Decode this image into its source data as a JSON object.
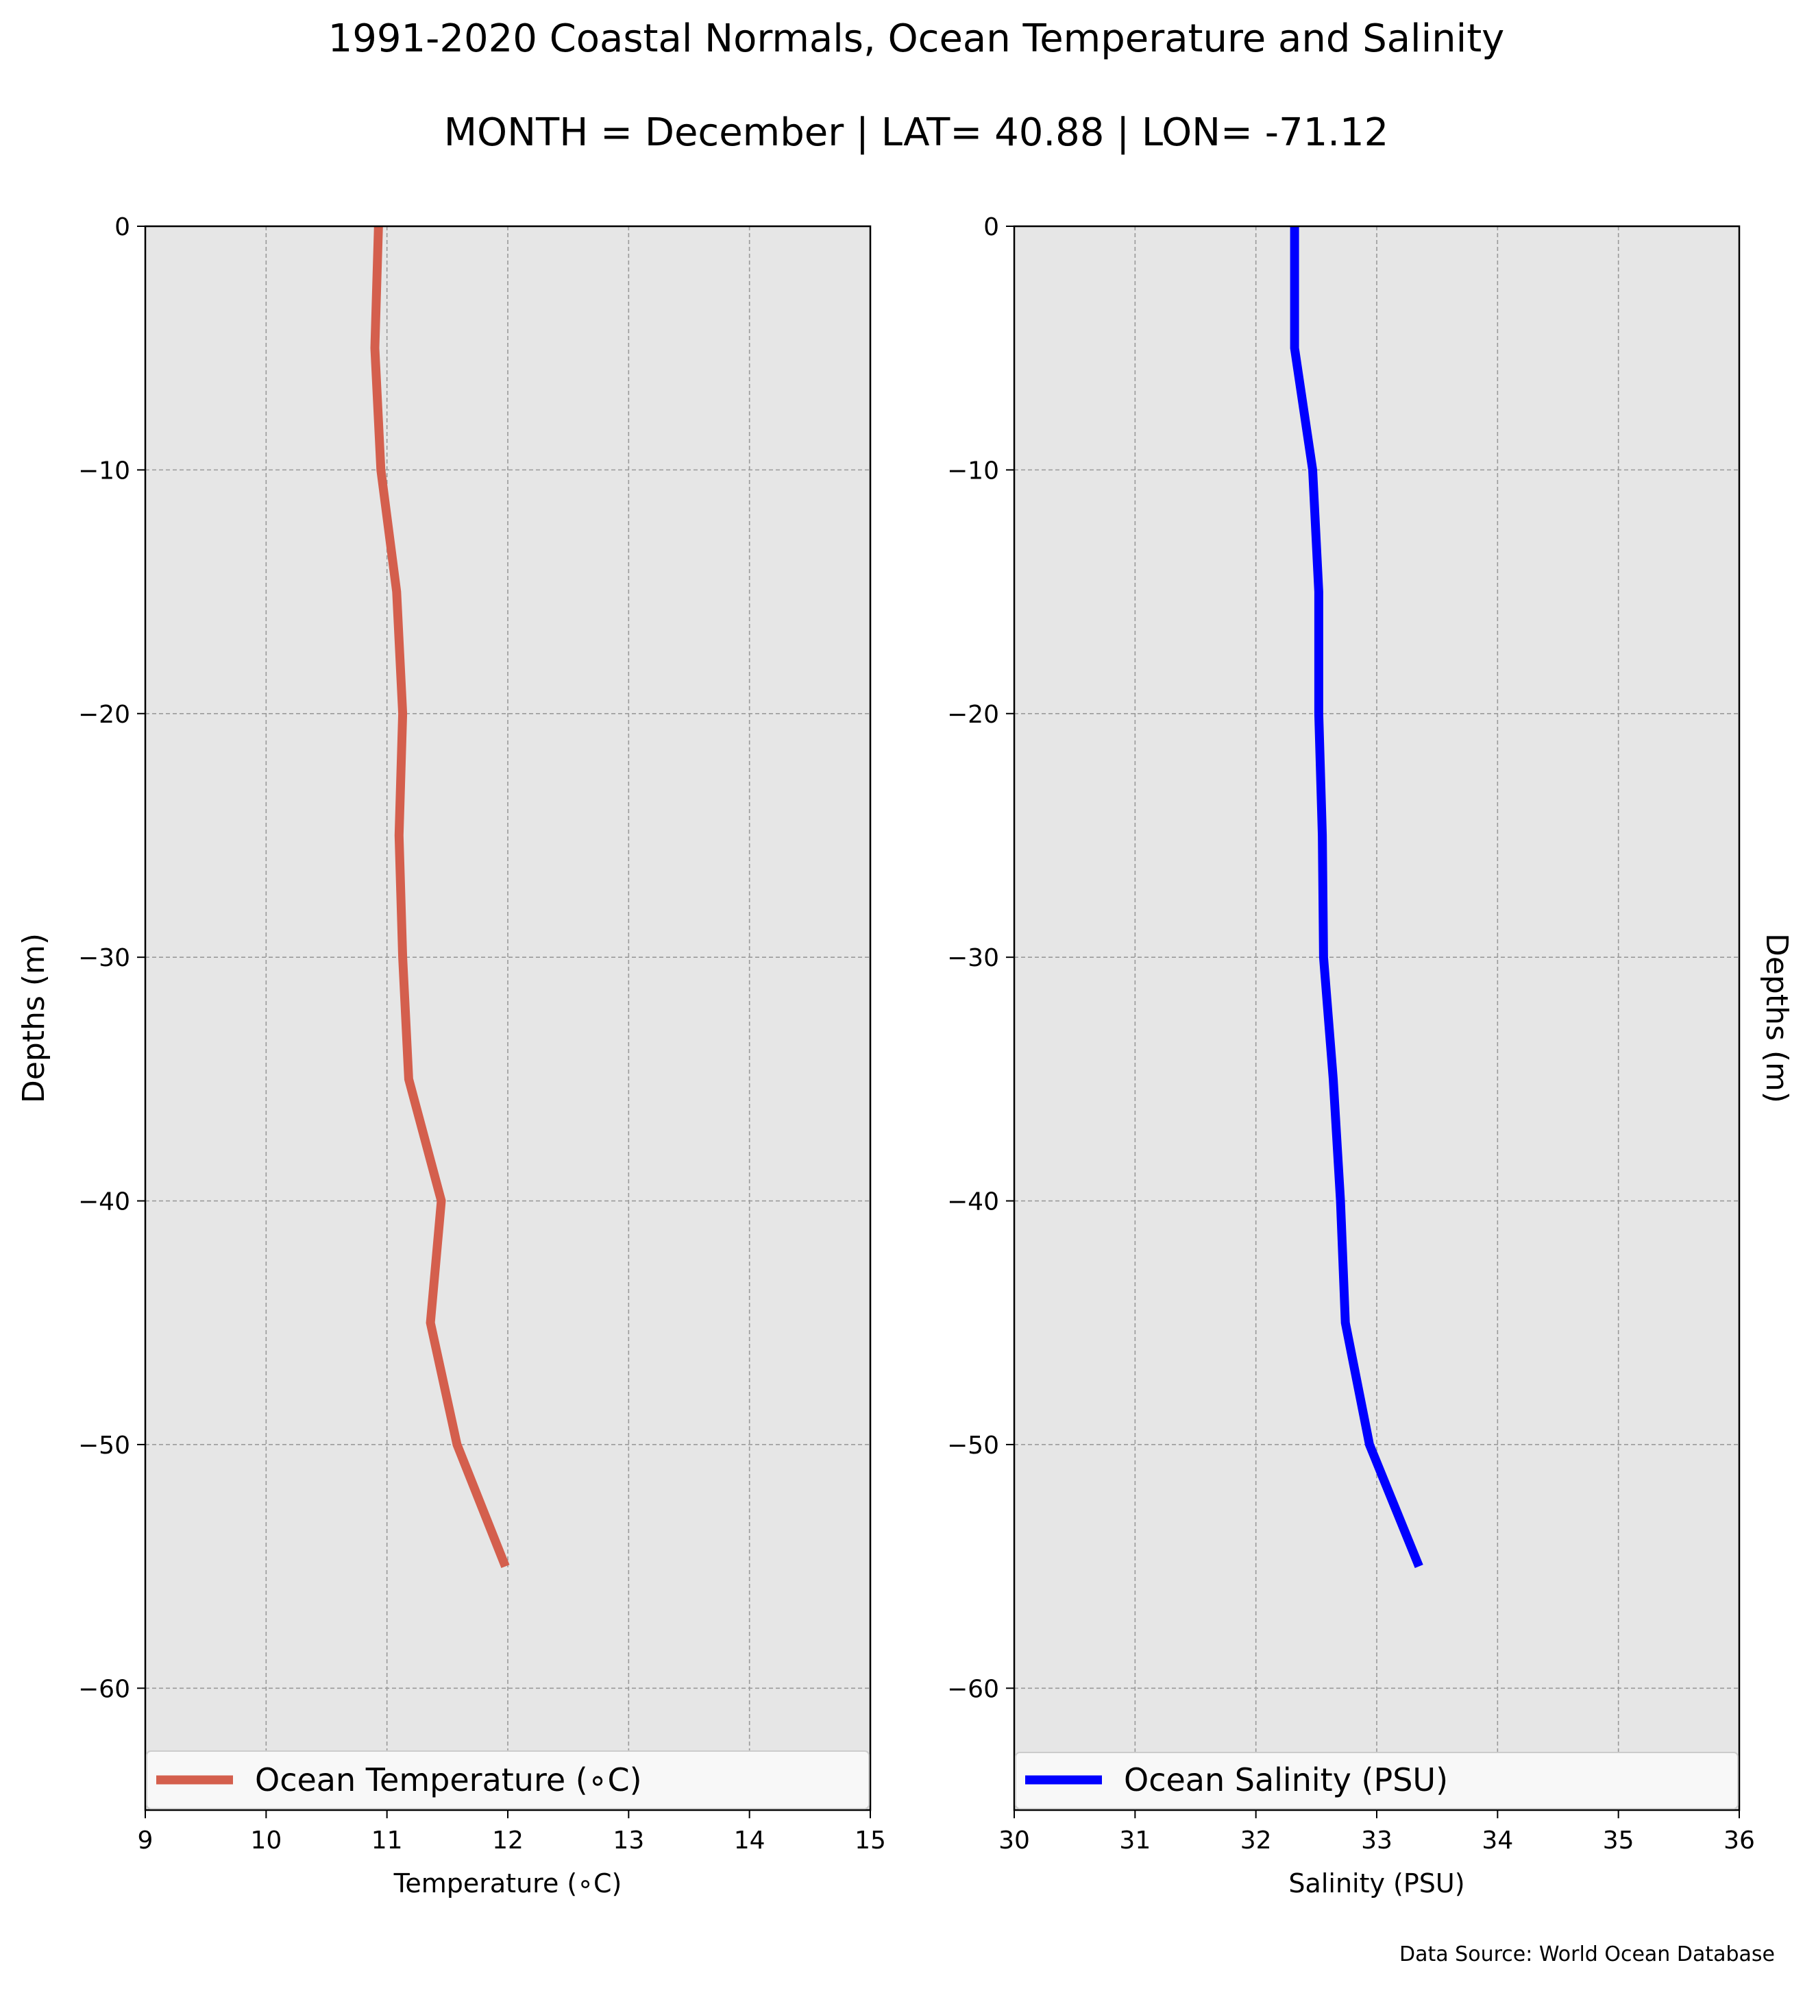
{
  "figure": {
    "title": "1991-2020 Coastal Normals, Ocean Temperature and Salinity",
    "subtitle": "MONTH = December | LAT= 40.88 | LON= -71.12",
    "source_note": "Data Source: World Ocean Database"
  },
  "chart_data": [
    {
      "type": "line",
      "orientation": "profile",
      "xlabel": "Temperature (∘C)",
      "ylabel": "Depths (m)",
      "xlim": [
        9,
        15
      ],
      "ylim": [
        -65,
        0
      ],
      "x_ticks": [
        "9",
        "10",
        "11",
        "12",
        "13",
        "14",
        "15"
      ],
      "y_ticks": [
        "0",
        "−10",
        "−20",
        "−30",
        "−40",
        "−50",
        "−60"
      ],
      "grid": true,
      "legend_position": "bottom",
      "series": [
        {
          "name": "Ocean Temperature (∘C)",
          "color": "#d45f4d",
          "x": [
            10.93,
            10.9,
            10.95,
            11.08,
            11.13,
            11.1,
            11.13,
            11.18,
            11.45,
            11.36,
            11.58,
            11.98
          ],
          "y": [
            0,
            -5,
            -10,
            -15,
            -20,
            -25,
            -30,
            -35,
            -40,
            -45,
            -50,
            -55
          ]
        }
      ]
    },
    {
      "type": "line",
      "orientation": "profile",
      "xlabel": "Salinity (PSU)",
      "ylabel": "Depths (m)",
      "xlim": [
        30,
        36
      ],
      "ylim": [
        -65,
        0
      ],
      "x_ticks": [
        "30",
        "31",
        "32",
        "33",
        "34",
        "35",
        "36"
      ],
      "y_ticks": [
        "0",
        "−10",
        "−20",
        "−30",
        "−40",
        "−50",
        "−60"
      ],
      "grid": true,
      "legend_position": "bottom",
      "series": [
        {
          "name": "Ocean Salinity (PSU)",
          "color": "#0000ff",
          "x": [
            32.32,
            32.32,
            32.47,
            32.52,
            32.52,
            32.55,
            32.56,
            32.64,
            32.7,
            32.74,
            32.94,
            33.35
          ],
          "y": [
            0,
            -5,
            -10,
            -15,
            -20,
            -25,
            -30,
            -35,
            -40,
            -45,
            -50,
            -55
          ]
        }
      ]
    }
  ]
}
